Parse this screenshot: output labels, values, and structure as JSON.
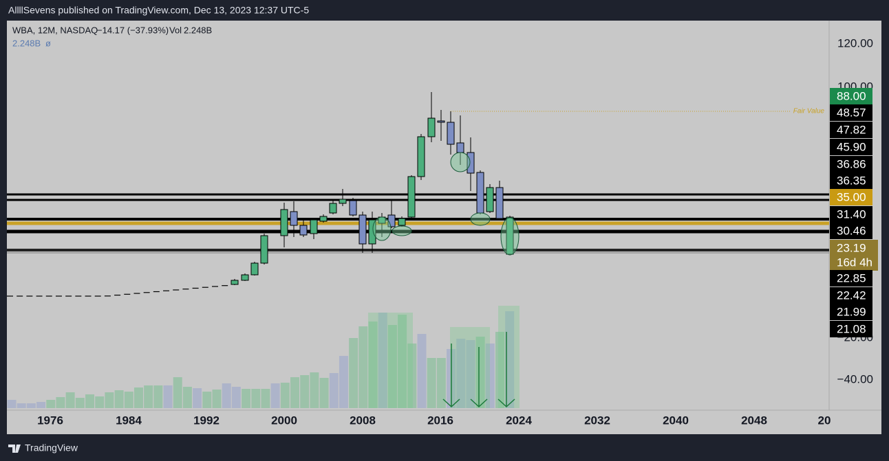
{
  "header": {
    "text": "AllllSevens published on TradingView.com, Dec 13, 2023 12:37 UTC-5"
  },
  "legend": {
    "symbol": "WBA, 12M, NASDAQ",
    "change": "−14.17 (−37.93%)",
    "vol_label": "Vol",
    "vol_value": "2.248B",
    "line2_value": "2.248B",
    "line2_symbol": "ø"
  },
  "annotation": "Fair Value",
  "price_axis": [
    "120.00",
    "100.00",
    "−20.00",
    "−40.00"
  ],
  "price_tags": [
    {
      "text": "88.00",
      "style": "green"
    },
    {
      "text": "48.57",
      "style": "black"
    },
    {
      "text": "47.82",
      "style": "black"
    },
    {
      "text": "45.90",
      "style": "black"
    },
    {
      "text": "36.86",
      "style": "black"
    },
    {
      "text": "36.35",
      "style": "black"
    },
    {
      "text": "35.00",
      "style": "gold"
    },
    {
      "text": "31.40",
      "style": "black"
    },
    {
      "text": "30.46",
      "style": "black"
    },
    {
      "text": "23.19",
      "style": "olive"
    },
    {
      "text": "16d 4h",
      "style": "olive"
    },
    {
      "text": "22.85",
      "style": "black"
    },
    {
      "text": "22.42",
      "style": "black"
    },
    {
      "text": "21.99",
      "style": "black"
    },
    {
      "text": "21.08",
      "style": "black"
    }
  ],
  "time_axis": [
    "1976",
    "1984",
    "1992",
    "2000",
    "2008",
    "2016",
    "2024",
    "2032",
    "2040",
    "2048",
    "20"
  ],
  "footer": {
    "brand": "TradingView"
  }
}
